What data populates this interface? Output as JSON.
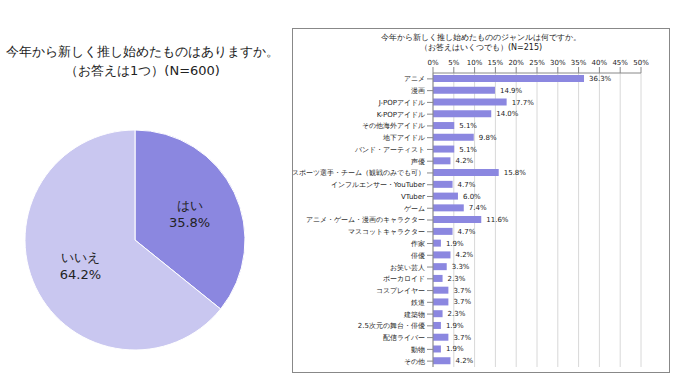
{
  "chart_data": [
    {
      "type": "pie",
      "title": "今年から新しく推し始めたものはありますか。\n（お答えは1つ）(N=600)",
      "categories": [
        "はい",
        "いいえ"
      ],
      "values": [
        35.8,
        64.2
      ],
      "value_labels": [
        "35.8%",
        "64.2%"
      ],
      "colors": [
        "#8b87e0",
        "#c9c7f0"
      ],
      "data_labels": true
    },
    {
      "type": "bar",
      "title": "今年から新しく推し始めたもののジャンルは何ですか。\n（お答えはいくつでも）(N=215)",
      "orientation": "horizontal",
      "categories": [
        "アニメ",
        "漫画",
        "J-POPアイドル",
        "K-POPアイドル",
        "その他海外アイドル",
        "地下アイドル",
        "バンド・アーティスト",
        "声優",
        "スポーツ選手・チーム（観戦のみでも可）",
        "インフルエンサー・YouTuber",
        "VTuber",
        "ゲーム",
        "アニメ・ゲーム・漫画のキャラクター",
        "マスコットキャラクター",
        "作家",
        "俳優",
        "お笑い芸人",
        "ボーカロイド",
        "コスプレイヤー",
        "鉄道",
        "建築物",
        "2.5次元の舞台・俳優",
        "配信ライバー",
        "動物",
        "その他"
      ],
      "values": [
        36.3,
        14.9,
        17.7,
        14.0,
        5.1,
        9.8,
        5.1,
        4.2,
        15.8,
        4.7,
        6.0,
        7.4,
        11.6,
        4.7,
        1.9,
        4.2,
        3.3,
        2.3,
        3.7,
        3.7,
        2.3,
        1.9,
        3.7,
        1.9,
        4.2
      ],
      "value_labels": [
        "36.3%",
        "14.9%",
        "17.7%",
        "14.0%",
        "5.1%",
        "9.8%",
        "5.1%",
        "4.2%",
        "15.8%",
        "4.7%",
        "6.0%",
        "7.4%",
        "11.6%",
        "4.7%",
        "1.9%",
        "4.2%",
        "3.3%",
        "2.3%",
        "3.7%",
        "3.7%",
        "2.3%",
        "1.9%",
        "3.7%",
        "1.9%",
        "4.2%"
      ],
      "color": "#8b87e0",
      "xlim": [
        0,
        50
      ],
      "xticks": [
        {
          "value": 0,
          "label": "0%"
        },
        {
          "value": 5,
          "label": "5%"
        },
        {
          "value": 10,
          "label": "10%"
        },
        {
          "value": 15,
          "label": "15%"
        },
        {
          "value": 20,
          "label": "20%"
        },
        {
          "value": 25,
          "label": "25%"
        },
        {
          "value": 30,
          "label": "30%"
        },
        {
          "value": 35,
          "label": "35%"
        },
        {
          "value": 40,
          "label": "40%"
        },
        {
          "value": 45,
          "label": "45%"
        },
        {
          "value": 50,
          "label": "50%"
        }
      ],
      "grid": true,
      "data_labels": true
    }
  ]
}
